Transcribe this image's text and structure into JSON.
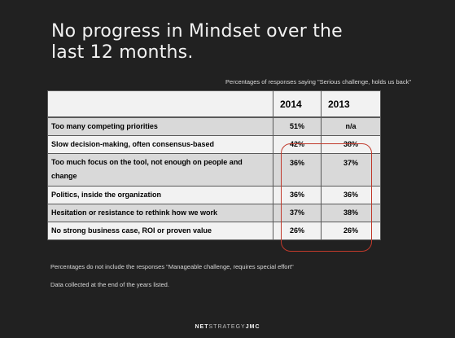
{
  "title_line1": "No progress in Mindset over the",
  "title_line2": "last 12 months.",
  "subtitle": "Percentages of responses saying \"Serious challenge, holds us back\"",
  "table": {
    "header": [
      "",
      "2014",
      "2013"
    ],
    "rows": [
      {
        "label": "Too many competing priorities",
        "v2014": "51%",
        "v2013": "n/a"
      },
      {
        "label": "Slow decision-making, often consensus-based",
        "v2014": "42%",
        "v2013": "38%"
      },
      {
        "label": "Too much focus on the tool, not enough on people and change",
        "v2014": "36%",
        "v2013": "37%"
      },
      {
        "label": "Politics, inside the organization",
        "v2014": "36%",
        "v2013": "36%"
      },
      {
        "label": "Hesitation or resistance to rethink how we work",
        "v2014": "37%",
        "v2013": "38%"
      },
      {
        "label": "No strong business case, ROI or proven value",
        "v2014": "26%",
        "v2013": "26%"
      }
    ]
  },
  "note1": "Percentages do not include the responses \"Manageable challenge, requires special effort\"",
  "note2": "Data collected at the end of the years listed.",
  "logo": {
    "part1": "NET",
    "part2": "STRATEGY",
    "part3": "JMC"
  },
  "colors": {
    "background": "#212121",
    "highlight": "#c0392b",
    "row_dark": "#d9d9d9",
    "row_light": "#f2f2f2"
  }
}
